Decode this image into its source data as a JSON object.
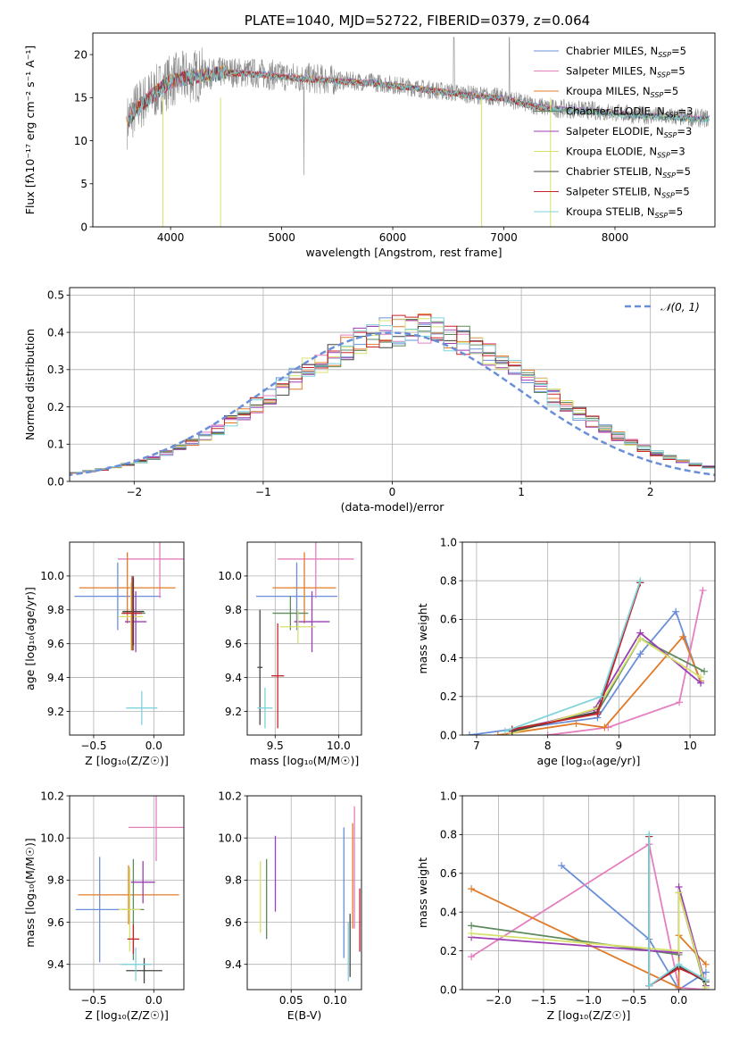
{
  "chart_data": [
    {
      "id": "spectrum",
      "type": "line",
      "title": "PLATE=1040, MJD=52722, FIBERID=0379, z=0.064",
      "xlabel": "wavelength [Angstrom, rest frame]",
      "ylabel": "Flux [fλ10⁻¹⁷ erg cm⁻² s⁻¹ A⁻¹]",
      "xlim": [
        3300,
        8900
      ],
      "ylim": [
        0,
        22.5
      ],
      "xticks": [
        4000,
        5000,
        6000,
        7000,
        8000
      ],
      "yticks": [
        0,
        5,
        10,
        15,
        20
      ],
      "grid": false,
      "legend_position": "top-right",
      "legend": [
        {
          "name": "Chabrier MILES, N_SSP=5",
          "color": "#6a8fd8"
        },
        {
          "name": "Salpeter MILES, N_SSP=5",
          "color": "#e57fbf"
        },
        {
          "name": "Kroupa MILES, N_SSP=5",
          "color": "#e07b2a"
        },
        {
          "name": "Chabrier ELODIE, N_SSP=3",
          "color": "#5e8a5e"
        },
        {
          "name": "Salpeter ELODIE, N_SSP=3",
          "color": "#9b3fb5"
        },
        {
          "name": "Kroupa ELODIE, N_SSP=3",
          "color": "#d7e06b"
        },
        {
          "name": "Chabrier STELIB, N_SSP=5",
          "color": "#444444"
        },
        {
          "name": "Salpeter STELIB, N_SSP=5",
          "color": "#c8232b"
        },
        {
          "name": "Kroupa STELIB, N_SSP=5",
          "color": "#7fd3da"
        }
      ],
      "observed_color": "#8c8c8c",
      "continuum": [
        [
          3600,
          12
        ],
        [
          3700,
          14
        ],
        [
          3800,
          15
        ],
        [
          4000,
          17
        ],
        [
          4200,
          17.5
        ],
        [
          4500,
          18
        ],
        [
          4800,
          17.8
        ],
        [
          5000,
          17.5
        ],
        [
          5200,
          17.3
        ],
        [
          5500,
          17
        ],
        [
          5800,
          16.8
        ],
        [
          6000,
          16.5
        ],
        [
          6300,
          16
        ],
        [
          6600,
          15.5
        ],
        [
          7000,
          15
        ],
        [
          7200,
          14.3
        ],
        [
          7400,
          13.8
        ],
        [
          7800,
          13.5
        ],
        [
          8200,
          13
        ],
        [
          8500,
          12.8
        ],
        [
          8800,
          12.6
        ]
      ]
    },
    {
      "id": "residuals",
      "type": "step",
      "xlabel": "(data-model)/error",
      "ylabel": "Normed distribution",
      "xlim": [
        -2.5,
        2.5
      ],
      "ylim": [
        0,
        0.52
      ],
      "xticks": [
        -2,
        -1,
        0,
        1,
        2
      ],
      "xtick_labels": [
        "−2",
        "−1",
        "0",
        "1",
        "2"
      ],
      "yticks": [
        0,
        0.1,
        0.2,
        0.3,
        0.4,
        0.5
      ],
      "ytick_labels": [
        "0.0",
        "0.1",
        "0.2",
        "0.3",
        "0.4",
        "0.5"
      ],
      "grid": true,
      "legend_position": "top-right",
      "reference_label": "𝒩(0, 1)",
      "reference_color": "#6a8fd8",
      "bin_width": 0.1
    },
    {
      "id": "age-vs-z",
      "type": "errorbar",
      "xlabel": "Z [log₁₀(Z/Z☉)]",
      "ylabel": "age  [log₁₀(age/yr)]",
      "xlim": [
        -0.7,
        0.25
      ],
      "ylim": [
        9.06,
        10.2
      ],
      "xticks": [
        -0.5,
        0.0
      ],
      "xtick_labels": [
        "−0.5",
        "0.0"
      ],
      "yticks": [
        9.2,
        9.4,
        9.6,
        9.8,
        10.0
      ],
      "ytick_labels": [
        "9.2",
        "9.4",
        "9.6",
        "9.8",
        "10.0"
      ],
      "grid": true,
      "points": [
        {
          "color": "#6a8fd8",
          "x": -0.3,
          "xerr": 0.36,
          "y": 9.88,
          "yerr": 0.2
        },
        {
          "color": "#e57fbf",
          "x": 0.05,
          "xerr": 0.35,
          "y": 10.1,
          "yerr": 0.23
        },
        {
          "color": "#e07b2a",
          "x": -0.22,
          "xerr": 0.4,
          "y": 9.93,
          "yerr": 0.21
        },
        {
          "color": "#5e8a5e",
          "x": -0.17,
          "xerr": 0.1,
          "y": 9.78,
          "yerr": 0.22
        },
        {
          "color": "#9b3fb5",
          "x": -0.15,
          "xerr": 0.09,
          "y": 9.73,
          "yerr": 0.18
        },
        {
          "color": "#d7e06b",
          "x": -0.19,
          "xerr": 0.1,
          "y": 9.76,
          "yerr": 0.2
        },
        {
          "color": "#444444",
          "x": -0.17,
          "xerr": 0.09,
          "y": 9.79,
          "yerr": 0.2
        },
        {
          "color": "#c8232b",
          "x": -0.18,
          "xerr": 0.08,
          "y": 9.78,
          "yerr": 0.22
        },
        {
          "color": "#7fd3da",
          "x": -0.1,
          "xerr": 0.13,
          "y": 9.22,
          "yerr": 0.1
        }
      ]
    },
    {
      "id": "age-vs-mass",
      "type": "errorbar",
      "xlabel": "mass [log₁₀(M/M☉)]",
      "xlim": [
        9.28,
        10.18
      ],
      "ylim": [
        9.06,
        10.2
      ],
      "xticks": [
        9.5,
        10.0
      ],
      "xtick_labels": [
        "9.5",
        "10.0"
      ],
      "yticks": [
        9.2,
        9.4,
        9.6,
        9.8,
        10.0
      ],
      "ytick_labels": [
        "9.2",
        "9.4",
        "9.6",
        "9.8",
        "10.0"
      ],
      "grid": true,
      "points": [
        {
          "color": "#6a8fd8",
          "x": 9.67,
          "xerr": 0.32,
          "y": 9.88,
          "yerr": 0.2
        },
        {
          "color": "#e57fbf",
          "x": 9.82,
          "xerr": 0.3,
          "y": 10.1,
          "yerr": 0.23
        },
        {
          "color": "#e07b2a",
          "x": 9.73,
          "xerr": 0.25,
          "y": 9.93,
          "yerr": 0.21
        },
        {
          "color": "#5e8a5e",
          "x": 9.62,
          "xerr": 0.14,
          "y": 9.78,
          "yerr": 0.1
        },
        {
          "color": "#9b3fb5",
          "x": 9.79,
          "xerr": 0.14,
          "y": 9.73,
          "yerr": 0.18
        },
        {
          "color": "#d7e06b",
          "x": 9.68,
          "xerr": 0.14,
          "y": 9.7,
          "yerr": 0.1
        },
        {
          "color": "#444444",
          "x": 9.38,
          "xerr": 0.02,
          "y": 9.46,
          "yerr": 0.34
        },
        {
          "color": "#c8232b",
          "x": 9.52,
          "xerr": 0.05,
          "y": 9.41,
          "yerr": 0.31
        },
        {
          "color": "#7fd3da",
          "x": 9.42,
          "xerr": 0.06,
          "y": 9.22,
          "yerr": 0.12
        }
      ]
    },
    {
      "id": "weight-vs-age",
      "type": "line",
      "xlabel": "age  [log₁₀(age/yr)]",
      "ylabel": "mass weight",
      "xlim": [
        6.8,
        10.35
      ],
      "ylim": [
        0,
        1
      ],
      "xticks": [
        7,
        8,
        9,
        10
      ],
      "xtick_labels": [
        "7",
        "8",
        "9",
        "10"
      ],
      "yticks": [
        0,
        0.2,
        0.4,
        0.6,
        0.8,
        1.0
      ],
      "ytick_labels": [
        "0.0",
        "0.2",
        "0.4",
        "0.6",
        "0.8",
        "1.0"
      ],
      "grid": true,
      "series": [
        {
          "color": "#6a8fd8",
          "points": [
            [
              6.9,
              0.0
            ],
            [
              8.7,
              0.09
            ],
            [
              9.3,
              0.42
            ],
            [
              9.8,
              0.64
            ],
            [
              10.15,
              0.27
            ]
          ]
        },
        {
          "color": "#e57fbf",
          "points": [
            [
              8.0,
              0.0
            ],
            [
              8.85,
              0.04
            ],
            [
              9.85,
              0.17
            ],
            [
              10.18,
              0.75
            ]
          ]
        },
        {
          "color": "#e07b2a",
          "points": [
            [
              7.3,
              0.0
            ],
            [
              8.4,
              0.06
            ],
            [
              8.8,
              0.04
            ],
            [
              9.9,
              0.51
            ],
            [
              10.15,
              0.28
            ]
          ]
        },
        {
          "color": "#5e8a5e",
          "points": [
            [
              7.5,
              0.03
            ],
            [
              8.7,
              0.12
            ],
            [
              9.3,
              0.5
            ],
            [
              10.2,
              0.33
            ]
          ]
        },
        {
          "color": "#9b3fb5",
          "points": [
            [
              7.5,
              0.02
            ],
            [
              8.65,
              0.13
            ],
            [
              9.3,
              0.53
            ],
            [
              10.15,
              0.27
            ]
          ]
        },
        {
          "color": "#d7e06b",
          "points": [
            [
              7.5,
              0.01
            ],
            [
              8.7,
              0.14
            ],
            [
              9.3,
              0.5
            ],
            [
              10.15,
              0.3
            ]
          ]
        },
        {
          "color": "#444444",
          "points": [
            [
              7.5,
              0.02
            ],
            [
              8.7,
              0.12
            ],
            [
              9.3,
              0.79
            ]
          ]
        },
        {
          "color": "#c8232b",
          "points": [
            [
              7.5,
              0.03
            ],
            [
              8.7,
              0.11
            ],
            [
              9.3,
              0.79
            ]
          ]
        },
        {
          "color": "#7fd3da",
          "points": [
            [
              7.4,
              0.02
            ],
            [
              8.75,
              0.2
            ],
            [
              9.3,
              0.8
            ]
          ]
        }
      ]
    },
    {
      "id": "mass-vs-z",
      "type": "errorbar",
      "xlabel": "Z [log₁₀(Z/Z☉)]",
      "ylabel": "mass [log₁₀(M/M☉)]",
      "xlim": [
        -0.7,
        0.25
      ],
      "ylim": [
        9.28,
        10.2
      ],
      "xticks": [
        -0.5,
        0.0
      ],
      "xtick_labels": [
        "−0.5",
        "0.0"
      ],
      "yticks": [
        9.4,
        9.6,
        9.8,
        10.0,
        10.2
      ],
      "ytick_labels": [
        "9.4",
        "9.6",
        "9.8",
        "10.0",
        "10.2"
      ],
      "grid": true,
      "points": [
        {
          "color": "#6a8fd8",
          "x": -0.45,
          "xerr": 0.2,
          "y": 9.66,
          "yerr": 0.25
        },
        {
          "color": "#e57fbf",
          "x": 0.02,
          "xerr": 0.23,
          "y": 10.05,
          "yerr": 0.16
        },
        {
          "color": "#e07b2a",
          "x": -0.21,
          "xerr": 0.42,
          "y": 9.73,
          "yerr": 0.14
        },
        {
          "color": "#5e8a5e",
          "x": -0.17,
          "xerr": 0.09,
          "y": 9.66,
          "yerr": 0.24
        },
        {
          "color": "#9b3fb5",
          "x": -0.09,
          "xerr": 0.1,
          "y": 9.79,
          "yerr": 0.1
        },
        {
          "color": "#d7e06b",
          "x": -0.2,
          "xerr": 0.09,
          "y": 9.66,
          "yerr": 0.2
        },
        {
          "color": "#444444",
          "x": -0.08,
          "xerr": 0.15,
          "y": 9.37,
          "yerr": 0.06
        },
        {
          "color": "#c8232b",
          "x": -0.17,
          "xerr": 0.05,
          "y": 9.52,
          "yerr": 0.07
        },
        {
          "color": "#7fd3da",
          "x": -0.15,
          "xerr": 0.13,
          "y": 9.4,
          "yerr": 0.08
        }
      ]
    },
    {
      "id": "mass-vs-ebv",
      "type": "errorbar",
      "xlabel": "E(B-V)",
      "xlim": [
        0.0,
        0.13
      ],
      "ylim": [
        9.28,
        10.2
      ],
      "xticks": [
        0.05,
        0.1
      ],
      "xtick_labels": [
        "0.05",
        "0.10"
      ],
      "yticks": [
        9.4,
        9.6,
        9.8,
        10.0,
        10.2
      ],
      "ytick_labels": [
        "9.4",
        "9.6",
        "9.8",
        "10.0",
        "10.2"
      ],
      "grid": true,
      "points": [
        {
          "color": "#6a8fd8",
          "x": 0.11,
          "xerr": 0,
          "y": 9.74,
          "yerr": 0.31
        },
        {
          "color": "#e57fbf",
          "x": 0.122,
          "xerr": 0,
          "y": 9.86,
          "yerr": 0.29
        },
        {
          "color": "#e07b2a",
          "x": 0.12,
          "xerr": 0,
          "y": 9.82,
          "yerr": 0.25
        },
        {
          "color": "#5e8a5e",
          "x": 0.022,
          "xerr": 0,
          "y": 9.71,
          "yerr": 0.19
        },
        {
          "color": "#9b3fb5",
          "x": 0.032,
          "xerr": 0,
          "y": 9.83,
          "yerr": 0.18
        },
        {
          "color": "#d7e06b",
          "x": 0.015,
          "xerr": 0,
          "y": 9.72,
          "yerr": 0.17
        },
        {
          "color": "#444444",
          "x": 0.117,
          "xerr": 0,
          "y": 9.49,
          "yerr": 0.15
        },
        {
          "color": "#c8232b",
          "x": 0.128,
          "xerr": 0,
          "y": 9.61,
          "yerr": 0.15
        },
        {
          "color": "#7fd3da",
          "x": 0.115,
          "xerr": 0,
          "y": 9.46,
          "yerr": 0.14
        }
      ]
    },
    {
      "id": "weight-vs-z",
      "type": "line",
      "xlabel": "Z [log₁₀(Z/Z☉)]",
      "ylabel": "mass weight",
      "xlim": [
        -2.4,
        0.4
      ],
      "ylim": [
        0,
        1
      ],
      "xticks": [
        -2.0,
        -1.5,
        -1.0,
        -0.5,
        0.0
      ],
      "xtick_labels": [
        "−2.0",
        "−1.5",
        "−1.0",
        "−0.5",
        "0.0"
      ],
      "yticks": [
        0,
        0.2,
        0.4,
        0.6,
        0.8,
        1.0
      ],
      "ytick_labels": [
        "0.0",
        "0.2",
        "0.4",
        "0.6",
        "0.8",
        "1.0"
      ],
      "grid": true,
      "series": [
        {
          "color": "#6a8fd8",
          "points": [
            [
              -1.3,
              0.64
            ],
            [
              -0.33,
              0.26
            ],
            [
              0.0,
              0.0
            ],
            [
              0.3,
              0.09
            ]
          ]
        },
        {
          "color": "#e57fbf",
          "points": [
            [
              -2.3,
              0.17
            ],
            [
              -0.33,
              0.75
            ],
            [
              0.0,
              0.01
            ],
            [
              0.3,
              0.0
            ]
          ]
        },
        {
          "color": "#e07b2a",
          "points": [
            [
              -2.3,
              0.52
            ],
            [
              0.0,
              0.01
            ],
            [
              0.0,
              0.28
            ],
            [
              0.3,
              0.13
            ]
          ]
        },
        {
          "color": "#5e8a5e",
          "points": [
            [
              -2.3,
              0.33
            ],
            [
              0.0,
              0.18
            ],
            [
              0.0,
              0.5
            ],
            [
              0.3,
              0.0
            ]
          ]
        },
        {
          "color": "#9b3fb5",
          "points": [
            [
              -2.3,
              0.27
            ],
            [
              0.0,
              0.19
            ],
            [
              0.0,
              0.53
            ],
            [
              0.3,
              0.02
            ]
          ]
        },
        {
          "color": "#d7e06b",
          "points": [
            [
              -2.3,
              0.29
            ],
            [
              0.0,
              0.2
            ],
            [
              0.0,
              0.5
            ],
            [
              0.3,
              0.01
            ]
          ]
        },
        {
          "color": "#444444",
          "points": [
            [
              -0.33,
              0.79
            ],
            [
              -0.33,
              0.02
            ],
            [
              0.0,
              0.12
            ],
            [
              0.3,
              0.04
            ]
          ]
        },
        {
          "color": "#c8232b",
          "points": [
            [
              -0.33,
              0.79
            ],
            [
              -0.33,
              0.02
            ],
            [
              0.0,
              0.11
            ],
            [
              0.3,
              0.05
            ]
          ]
        },
        {
          "color": "#7fd3da",
          "points": [
            [
              -0.33,
              0.8
            ],
            [
              -0.33,
              0.02
            ],
            [
              0.0,
              0.13
            ],
            [
              0.3,
              0.05
            ]
          ]
        }
      ]
    }
  ]
}
